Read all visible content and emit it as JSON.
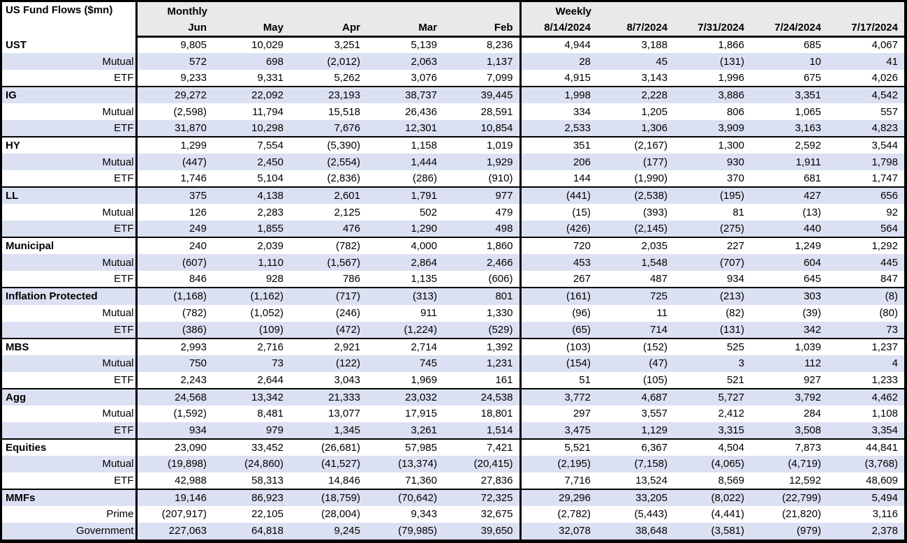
{
  "chart_data": {
    "type": "table",
    "title": "US Fund Flows ($mn)",
    "column_groups": [
      {
        "label": "Monthly",
        "columns": [
          "Jun",
          "May",
          "Apr",
          "Mar",
          "Feb"
        ]
      },
      {
        "label": "Weekly",
        "columns": [
          "8/14/2024",
          "8/7/2024",
          "7/31/2024",
          "7/24/2024",
          "7/17/2024"
        ]
      }
    ],
    "groups": [
      {
        "category": "UST",
        "rows": [
          {
            "label": "UST",
            "bold": true,
            "values": [
              "9,805",
              "10,029",
              "3,251",
              "5,139",
              "8,236",
              "4,944",
              "3,188",
              "1,866",
              "685",
              "4,067"
            ]
          },
          {
            "label": "Mutual",
            "bold": false,
            "values": [
              "572",
              "698",
              "(2,012)",
              "2,063",
              "1,137",
              "28",
              "45",
              "(131)",
              "10",
              "41"
            ]
          },
          {
            "label": "ETF",
            "bold": false,
            "values": [
              "9,233",
              "9,331",
              "5,262",
              "3,076",
              "7,099",
              "4,915",
              "3,143",
              "1,996",
              "675",
              "4,026"
            ]
          }
        ]
      },
      {
        "category": "IG",
        "rows": [
          {
            "label": "IG",
            "bold": true,
            "values": [
              "29,272",
              "22,092",
              "23,193",
              "38,737",
              "39,445",
              "1,998",
              "2,228",
              "3,886",
              "3,351",
              "4,542"
            ]
          },
          {
            "label": "Mutual",
            "bold": false,
            "values": [
              "(2,598)",
              "11,794",
              "15,518",
              "26,436",
              "28,591",
              "334",
              "1,205",
              "806",
              "1,065",
              "557"
            ]
          },
          {
            "label": "ETF",
            "bold": false,
            "values": [
              "31,870",
              "10,298",
              "7,676",
              "12,301",
              "10,854",
              "2,533",
              "1,306",
              "3,909",
              "3,163",
              "4,823"
            ]
          }
        ]
      },
      {
        "category": "HY",
        "rows": [
          {
            "label": "HY",
            "bold": true,
            "values": [
              "1,299",
              "7,554",
              "(5,390)",
              "1,158",
              "1,019",
              "351",
              "(2,167)",
              "1,300",
              "2,592",
              "3,544"
            ]
          },
          {
            "label": "Mutual",
            "bold": false,
            "values": [
              "(447)",
              "2,450",
              "(2,554)",
              "1,444",
              "1,929",
              "206",
              "(177)",
              "930",
              "1,911",
              "1,798"
            ]
          },
          {
            "label": "ETF",
            "bold": false,
            "values": [
              "1,746",
              "5,104",
              "(2,836)",
              "(286)",
              "(910)",
              "144",
              "(1,990)",
              "370",
              "681",
              "1,747"
            ]
          }
        ]
      },
      {
        "category": "LL",
        "rows": [
          {
            "label": "LL",
            "bold": true,
            "values": [
              "375",
              "4,138",
              "2,601",
              "1,791",
              "977",
              "(441)",
              "(2,538)",
              "(195)",
              "427",
              "656"
            ]
          },
          {
            "label": "Mutual",
            "bold": false,
            "values": [
              "126",
              "2,283",
              "2,125",
              "502",
              "479",
              "(15)",
              "(393)",
              "81",
              "(13)",
              "92"
            ]
          },
          {
            "label": "ETF",
            "bold": false,
            "values": [
              "249",
              "1,855",
              "476",
              "1,290",
              "498",
              "(426)",
              "(2,145)",
              "(275)",
              "440",
              "564"
            ]
          }
        ]
      },
      {
        "category": "Municipal",
        "rows": [
          {
            "label": "Municipal",
            "bold": true,
            "values": [
              "240",
              "2,039",
              "(782)",
              "4,000",
              "1,860",
              "720",
              "2,035",
              "227",
              "1,249",
              "1,292"
            ]
          },
          {
            "label": "Mutual",
            "bold": false,
            "values": [
              "(607)",
              "1,110",
              "(1,567)",
              "2,864",
              "2,466",
              "453",
              "1,548",
              "(707)",
              "604",
              "445"
            ]
          },
          {
            "label": "ETF",
            "bold": false,
            "values": [
              "846",
              "928",
              "786",
              "1,135",
              "(606)",
              "267",
              "487",
              "934",
              "645",
              "847"
            ]
          }
        ]
      },
      {
        "category": "Inflation Protected",
        "rows": [
          {
            "label": "Inflation Protected",
            "bold": true,
            "values": [
              "(1,168)",
              "(1,162)",
              "(717)",
              "(313)",
              "801",
              "(161)",
              "725",
              "(213)",
              "303",
              "(8)"
            ]
          },
          {
            "label": "Mutual",
            "bold": false,
            "values": [
              "(782)",
              "(1,052)",
              "(246)",
              "911",
              "1,330",
              "(96)",
              "11",
              "(82)",
              "(39)",
              "(80)"
            ]
          },
          {
            "label": "ETF",
            "bold": false,
            "values": [
              "(386)",
              "(109)",
              "(472)",
              "(1,224)",
              "(529)",
              "(65)",
              "714",
              "(131)",
              "342",
              "73"
            ]
          }
        ]
      },
      {
        "category": "MBS",
        "rows": [
          {
            "label": "MBS",
            "bold": true,
            "values": [
              "2,993",
              "2,716",
              "2,921",
              "2,714",
              "1,392",
              "(103)",
              "(152)",
              "525",
              "1,039",
              "1,237"
            ]
          },
          {
            "label": "Mutual",
            "bold": false,
            "values": [
              "750",
              "73",
              "(122)",
              "745",
              "1,231",
              "(154)",
              "(47)",
              "3",
              "112",
              "4"
            ]
          },
          {
            "label": "ETF",
            "bold": false,
            "values": [
              "2,243",
              "2,644",
              "3,043",
              "1,969",
              "161",
              "51",
              "(105)",
              "521",
              "927",
              "1,233"
            ]
          }
        ]
      },
      {
        "category": "Agg",
        "rows": [
          {
            "label": "Agg",
            "bold": true,
            "values": [
              "24,568",
              "13,342",
              "21,333",
              "23,032",
              "24,538",
              "3,772",
              "4,687",
              "5,727",
              "3,792",
              "4,462"
            ]
          },
          {
            "label": "Mutual",
            "bold": false,
            "values": [
              "(1,592)",
              "8,481",
              "13,077",
              "17,915",
              "18,801",
              "297",
              "3,557",
              "2,412",
              "284",
              "1,108"
            ]
          },
          {
            "label": "ETF",
            "bold": false,
            "values": [
              "934",
              "979",
              "1,345",
              "3,261",
              "1,514",
              "3,475",
              "1,129",
              "3,315",
              "3,508",
              "3,354"
            ]
          }
        ]
      },
      {
        "category": "Equities",
        "rows": [
          {
            "label": "Equities",
            "bold": true,
            "values": [
              "23,090",
              "33,452",
              "(26,681)",
              "57,985",
              "7,421",
              "5,521",
              "6,367",
              "4,504",
              "7,873",
              "44,841"
            ]
          },
          {
            "label": "Mutual",
            "bold": false,
            "values": [
              "(19,898)",
              "(24,860)",
              "(41,527)",
              "(13,374)",
              "(20,415)",
              "(2,195)",
              "(7,158)",
              "(4,065)",
              "(4,719)",
              "(3,768)"
            ]
          },
          {
            "label": "ETF",
            "bold": false,
            "values": [
              "42,988",
              "58,313",
              "14,846",
              "71,360",
              "27,836",
              "7,716",
              "13,524",
              "8,569",
              "12,592",
              "48,609"
            ]
          }
        ]
      },
      {
        "category": "MMFs",
        "rows": [
          {
            "label": "MMFs",
            "bold": true,
            "values": [
              "19,146",
              "86,923",
              "(18,759)",
              "(70,642)",
              "72,325",
              "29,296",
              "33,205",
              "(8,022)",
              "(22,799)",
              "5,494"
            ]
          },
          {
            "label": "Prime",
            "bold": false,
            "values": [
              "(207,917)",
              "22,105",
              "(28,004)",
              "9,343",
              "32,675",
              "(2,782)",
              "(5,443)",
              "(4,441)",
              "(21,820)",
              "3,116"
            ]
          },
          {
            "label": "Government",
            "bold": false,
            "values": [
              "227,063",
              "64,818",
              "9,245",
              "(79,985)",
              "39,650",
              "32,078",
              "38,648",
              "(3,581)",
              "(979)",
              "2,378"
            ]
          }
        ]
      }
    ],
    "layout_hints": {
      "grid": "group-separators-only",
      "legend_position": "none"
    },
    "colors": {
      "row_shade": "#dbe1f2",
      "header_bg": "#e9e9e9",
      "border": "#000000",
      "text": "#000000"
    }
  }
}
